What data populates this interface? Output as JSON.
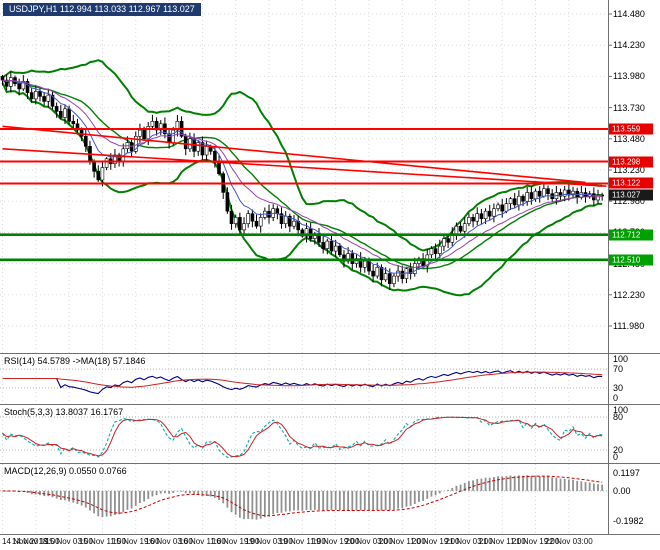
{
  "header": {
    "symbol_label": "USDJPY,H1 112.994 113.033 112.967 113.027"
  },
  "main_axis": {
    "ticks": [
      {
        "text": "114.480",
        "value": 114.48
      },
      {
        "text": "114.230",
        "value": 114.23
      },
      {
        "text": "113.980",
        "value": 113.98
      },
      {
        "text": "113.730",
        "value": 113.73
      },
      {
        "text": "113.480",
        "value": 113.48
      },
      {
        "text": "113.230",
        "value": 113.23
      },
      {
        "text": "112.980",
        "value": 112.98
      },
      {
        "text": "112.730",
        "value": 112.73
      },
      {
        "text": "112.480",
        "value": 112.48
      },
      {
        "text": "112.230",
        "value": 112.23
      },
      {
        "text": "111.980",
        "value": 111.98
      }
    ]
  },
  "time_axis": {
    "labels": [
      "14 Nov 2018",
      "14 Nov 19:00",
      "15 Nov 03:00",
      "15 Nov 11:00",
      "15 Nov 19:00",
      "16 Nov 03:00",
      "16 Nov 11:00",
      "16 Nov 19:00",
      "19 Nov 03:00",
      "19 Nov 11:00",
      "19 Nov 19:00",
      "20 Nov 03:00",
      "20 Nov 11:00",
      "20 Nov 19:00",
      "21 Nov 03:00",
      "21 Nov 11:00",
      "21 Nov 19:00",
      "22 Nov 03:00"
    ]
  },
  "price_badges": [
    {
      "text": "113.559",
      "value": 113.559,
      "bg": "#e60000"
    },
    {
      "text": "113.298",
      "value": 113.298,
      "bg": "#e60000"
    },
    {
      "text": "113.122",
      "value": 113.122,
      "bg": "#e60000"
    },
    {
      "text": "113.027",
      "value": 113.027,
      "bg": "#1a1a1a"
    },
    {
      "text": "112.712",
      "value": 112.712,
      "bg": "#00a000"
    },
    {
      "text": "112.510",
      "value": 112.51,
      "bg": "#00a000"
    }
  ],
  "colors": {
    "background": "#ffffff",
    "grid": "#d9d9d9",
    "panel_border": "#707070",
    "candle_up": "#ffffff",
    "candle_down": "#000000",
    "candle_border": "#000000",
    "bollinger": "#008000",
    "ema_fast": "#4455cc",
    "ema_slow": "#9944aa",
    "resistance": "#ff0000",
    "support": "#008000",
    "trendline": "#ff0000",
    "level_dotted": "#b3b3b3",
    "rsi_line": "#00007f",
    "rsi_ma": "#cc2222",
    "stoch_k": "#00b0b0",
    "stoch_d": "#cc2222",
    "macd_hist": "#909090",
    "macd_signal": "#cc0000",
    "symbol_bg": "#1f3a6e"
  },
  "chart_data": {
    "type": "candlestick",
    "symbol": "USDJPY",
    "timeframe": "H1",
    "last_values": {
      "open": 112.994,
      "high": 113.033,
      "low": 112.967,
      "close": 113.027
    },
    "y_range": [
      111.77,
      114.59
    ],
    "closes": [
      113.95,
      113.9,
      113.97,
      113.92,
      113.88,
      113.94,
      113.85,
      113.8,
      113.86,
      113.82,
      113.78,
      113.83,
      113.74,
      113.7,
      113.65,
      113.72,
      113.62,
      113.6,
      113.55,
      113.5,
      113.42,
      113.3,
      113.22,
      113.15,
      113.25,
      113.32,
      113.28,
      113.35,
      113.3,
      113.4,
      113.45,
      113.38,
      113.5,
      113.55,
      113.48,
      113.58,
      113.62,
      113.55,
      113.6,
      113.52,
      113.45,
      113.55,
      113.62,
      113.5,
      113.4,
      113.48,
      113.38,
      113.45,
      113.35,
      113.42,
      113.38,
      113.3,
      113.2,
      113.05,
      112.9,
      112.8,
      112.85,
      112.75,
      112.8,
      112.88,
      112.82,
      112.78,
      112.85,
      112.9,
      112.85,
      112.92,
      112.88,
      112.8,
      112.86,
      112.78,
      112.82,
      112.75,
      112.7,
      112.76,
      112.68,
      112.72,
      112.65,
      112.6,
      112.66,
      112.58,
      112.62,
      112.55,
      112.5,
      112.56,
      112.48,
      112.52,
      112.45,
      112.5,
      112.42,
      112.38,
      112.45,
      112.35,
      112.4,
      112.32,
      112.38,
      112.42,
      112.36,
      112.44,
      112.4,
      112.48,
      112.52,
      112.46,
      112.55,
      112.6,
      112.56,
      112.62,
      112.68,
      112.65,
      112.72,
      112.78,
      112.74,
      112.8,
      112.85,
      112.82,
      112.88,
      112.84,
      112.9,
      112.86,
      112.92,
      112.95,
      112.9,
      112.96,
      113.0,
      112.95,
      113.02,
      112.98,
      113.05,
      113.0,
      113.06,
      113.02,
      113.08,
      113.04,
      113.0,
      113.05,
      113.02,
      113.07,
      113.03,
      113.06,
      113.01,
      113.05,
      113.02,
      113.04,
      112.99,
      113.03,
      113.027
    ],
    "bollinger": {
      "period": 20,
      "deviation": 2
    },
    "levels": {
      "resistance": [
        113.559,
        113.298,
        113.122
      ],
      "support": [
        112.712,
        112.51
      ],
      "current": 113.027
    },
    "trendlines": [
      {
        "from_index": 0,
        "from_price": 113.58,
        "to_index": 140,
        "to_price": 113.13
      },
      {
        "from_index": 0,
        "from_price": 113.4,
        "to_index": 145,
        "to_price": 113.1
      }
    ],
    "indicators": [
      {
        "id": "rsi",
        "label": "RSI(14) 54.5789 ->MA(18) 57.1846",
        "period": 14,
        "ma_period": 18,
        "current": 54.5789,
        "ma_current": 57.1846,
        "levels": [
          70,
          30
        ],
        "scale_ticks": [
          {
            "text": "100",
            "value": 100
          },
          {
            "text": "70",
            "value": 70
          },
          {
            "text": "30",
            "value": 30
          },
          {
            "text": "0",
            "value": 0
          }
        ]
      },
      {
        "id": "stoch",
        "label": "Stoch(5,3,3) 13.8037 16.1767",
        "k_period": 5,
        "slowing": 3,
        "d_period": 3,
        "current_k": 13.8037,
        "current_d": 16.1767,
        "levels": [
          80,
          20
        ],
        "scale_ticks": [
          {
            "text": "100",
            "value": 100
          },
          {
            "text": "80",
            "value": 80
          },
          {
            "text": "20",
            "value": 20
          },
          {
            "text": "0",
            "value": 0
          }
        ]
      },
      {
        "id": "macd",
        "label": "MACD(12,26,9) 0.0550 0.0766",
        "fast": 12,
        "slow": 26,
        "signal": 9,
        "current": 0.055,
        "current_signal": 0.0766,
        "range": [
          0.17,
          -0.27
        ],
        "scale_ticks": [
          {
            "text": "0.1197",
            "value": 0.1197
          },
          {
            "text": "0.00",
            "value": 0
          },
          {
            "text": "-0.1982",
            "value": -0.1982
          }
        ]
      }
    ]
  }
}
